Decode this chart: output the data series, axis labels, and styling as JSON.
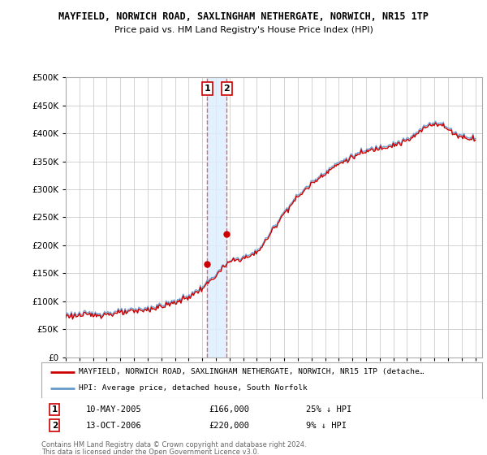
{
  "title": "MAYFIELD, NORWICH ROAD, SAXLINGHAM NETHERGATE, NORWICH, NR15 1TP",
  "subtitle": "Price paid vs. HM Land Registry's House Price Index (HPI)",
  "ylim": [
    0,
    500000
  ],
  "yticks": [
    0,
    50000,
    100000,
    150000,
    200000,
    250000,
    300000,
    350000,
    400000,
    450000,
    500000
  ],
  "ytick_labels": [
    "£0",
    "£50K",
    "£100K",
    "£150K",
    "£200K",
    "£250K",
    "£300K",
    "£350K",
    "£400K",
    "£450K",
    "£500K"
  ],
  "xlim_start": 1995.0,
  "xlim_end": 2025.5,
  "sale1_x": 2005.36,
  "sale1_y": 166000,
  "sale2_x": 2006.79,
  "sale2_y": 220000,
  "sale1_date": "10-MAY-2005",
  "sale1_price": "£166,000",
  "sale1_hpi": "25% ↓ HPI",
  "sale2_date": "13-OCT-2006",
  "sale2_price": "£220,000",
  "sale2_hpi": "9% ↓ HPI",
  "legend_red_label": "MAYFIELD, NORWICH ROAD, SAXLINGHAM NETHERGATE, NORWICH, NR15 1TP (detache…",
  "legend_blue_label": "HPI: Average price, detached house, South Norfolk",
  "footer_line1": "Contains HM Land Registry data © Crown copyright and database right 2024.",
  "footer_line2": "This data is licensed under the Open Government Licence v3.0.",
  "red_color": "#cc0000",
  "blue_color": "#6699cc",
  "shade_color": "#ddeeff",
  "grid_color": "#cccccc",
  "background_color": "#ffffff"
}
